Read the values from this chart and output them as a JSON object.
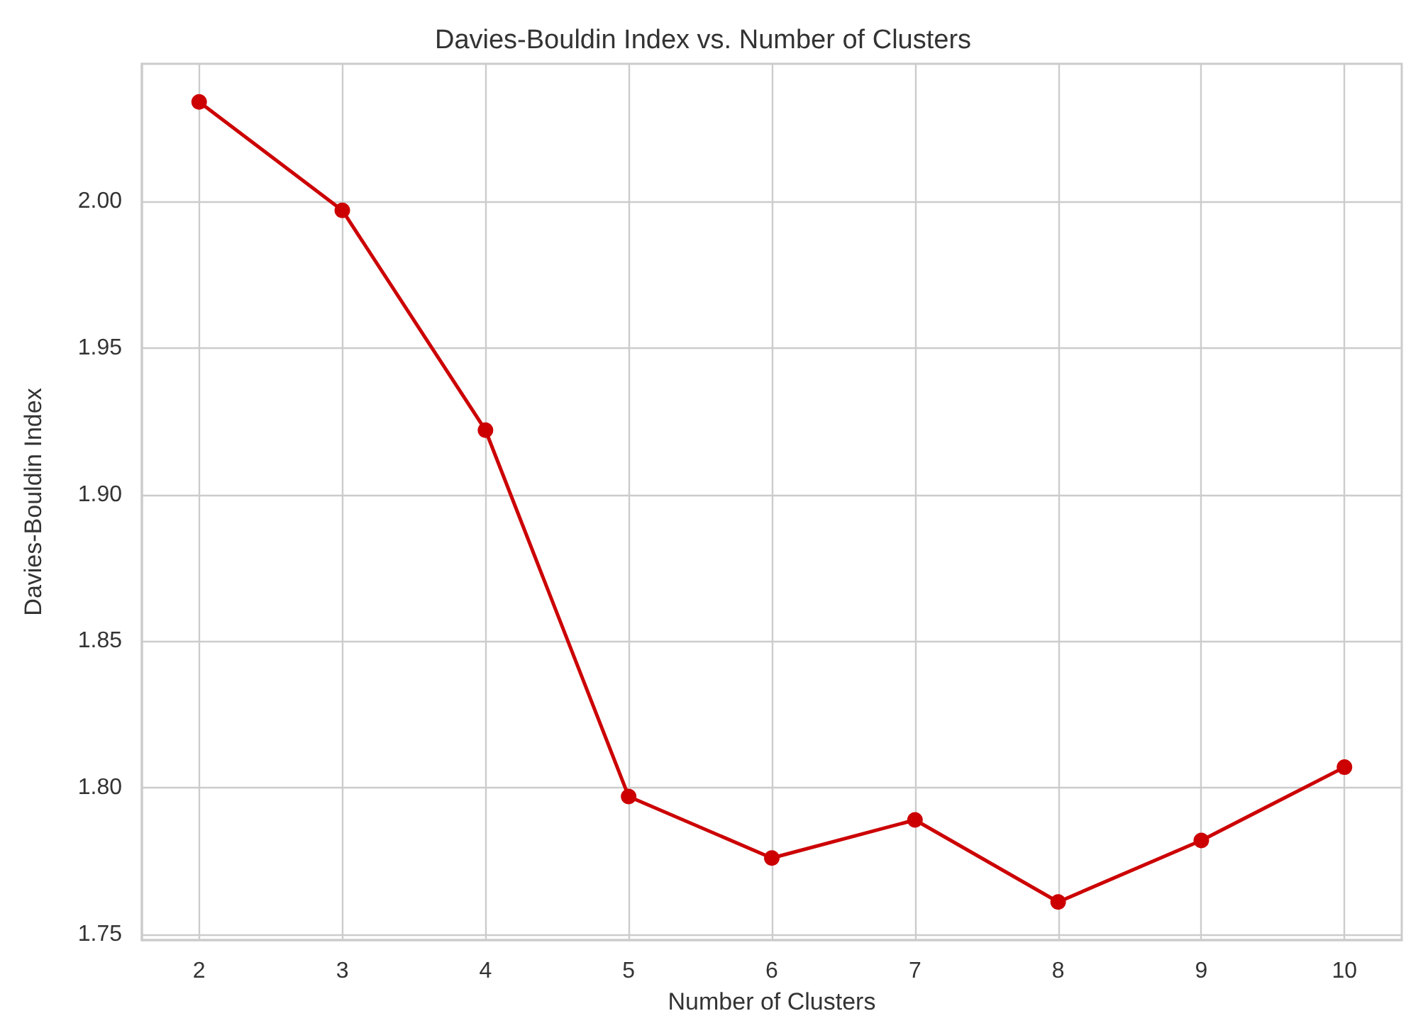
{
  "chart_data": {
    "type": "line",
    "title": "Davies-Bouldin Index vs. Number of Clusters",
    "xlabel": "Number of Clusters",
    "ylabel": "Davies-Bouldin Index",
    "x": [
      2,
      3,
      4,
      5,
      6,
      7,
      8,
      9,
      10
    ],
    "series": [
      {
        "color": "#cc0000",
        "values": [
          2.034,
          1.997,
          1.922,
          1.797,
          1.776,
          1.789,
          1.761,
          1.782,
          1.807
        ]
      }
    ],
    "xlim": [
      1.6,
      10.4
    ],
    "xticks": [
      2,
      3,
      4,
      5,
      6,
      7,
      8,
      9,
      10
    ],
    "ylim": [
      1.748,
      2.047
    ],
    "yticks": [
      1.75,
      {
        "value": 1.8,
        "label": "1.80"
      },
      1.85,
      {
        "value": 1.9,
        "label": "1.90"
      },
      1.95,
      {
        "value": 2.0,
        "label": "2.00"
      }
    ],
    "grid": true,
    "marker": "circle",
    "line_style": "solid"
  }
}
